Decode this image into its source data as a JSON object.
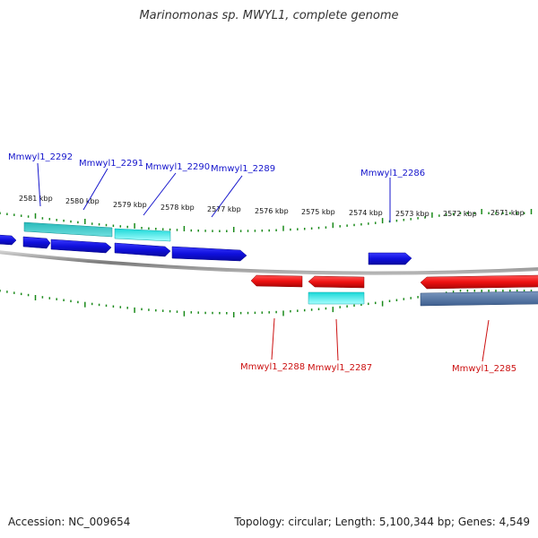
{
  "title": "Marinomonas sp. MWYL1, complete genome",
  "footer": {
    "accession": "Accession: NC_009654",
    "summary": "Topology: circular; Length: 5,100,344 bp; Genes: 4,549"
  },
  "colors": {
    "forward_gene": "#1010dd",
    "reverse_gene": "#ee1111",
    "forward_rna": "#1ab0b0",
    "reverse_rna": "#2ec8c8",
    "reverse_other": "#5577aa",
    "tick": "#1a8a1a",
    "backbone": "#888888",
    "forward_label": "#1515cc",
    "reverse_label": "#cc1111"
  },
  "scale_labels": [
    "2581 kbp",
    "2580 kbp",
    "2579 kbp",
    "2578 kbp",
    "2577 kbp",
    "2576 kbp",
    "2575 kbp",
    "2574 kbp",
    "2573 kbp",
    "2572 kbp",
    "2571 kbp"
  ],
  "forward_labels": [
    "Mmwyl1_2292",
    "Mmwyl1_2291",
    "Mmwyl1_2290",
    "Mmwyl1_2289",
    "Mmwyl1_2286"
  ],
  "reverse_labels": [
    "Mmwyl1_2288",
    "Mmwyl1_2287",
    "Mmwyl1_2285"
  ]
}
